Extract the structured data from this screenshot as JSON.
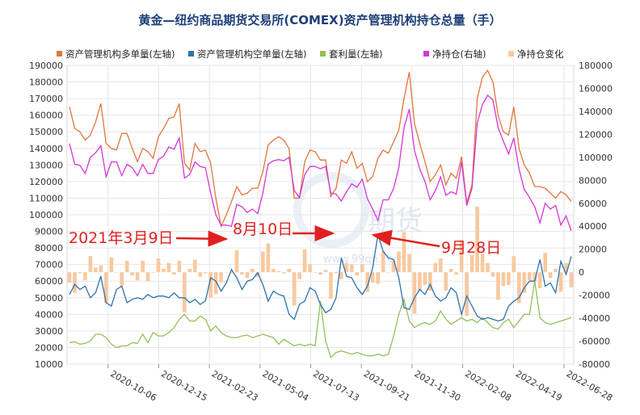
{
  "chart_data": {
    "type": "line",
    "title": "黄金—纽约商品期货交易所(COMEX)资产管理机构持仓总量（手）",
    "left_axis": {
      "min": 10000,
      "max": 190000,
      "step": 10000,
      "tick_labels": [
        "10000",
        "20000",
        "30000",
        "40000",
        "50000",
        "60000",
        "70000",
        "80000",
        "90000",
        "100000",
        "110000",
        "120000",
        "130000",
        "140000",
        "150000",
        "160000",
        "170000",
        "180000",
        "190000"
      ]
    },
    "right_axis": {
      "min": -80000,
      "max": 180000,
      "step": 20000,
      "tick_labels": [
        "-80000",
        "-60000",
        "-40000",
        "-20000",
        "0",
        "20000",
        "40000",
        "60000",
        "80000",
        "100000",
        "120000",
        "140000",
        "160000",
        "180000"
      ]
    },
    "x_tick_labels": [
      "2020-10-06",
      "2020-12-15",
      "2021-02-23",
      "2021-05-04",
      "2021-07-13",
      "2021-09-21",
      "2021-11-30",
      "2022-02-08",
      "2022-04-19",
      "2022-06-28"
    ],
    "legend": [
      {
        "label": "资产管理机构多单量(左轴)",
        "color": "#e0763c"
      },
      {
        "label": "资产管理机构空单量(左轴)",
        "color": "#2f72ad"
      },
      {
        "label": "套利量(左轴)",
        "color": "#93c058"
      },
      {
        "label": "净持仓(右轴)",
        "color": "#d636d6"
      },
      {
        "label": "净持仓变化",
        "color": "#f8c9a0"
      }
    ],
    "series": [
      {
        "name": "资产管理机构多单量(左轴)",
        "axis": "left",
        "color": "#e0763c",
        "values": [
          165000,
          152000,
          150000,
          145000,
          148000,
          156000,
          167000,
          143000,
          140000,
          139000,
          149000,
          149000,
          140000,
          132000,
          140000,
          138000,
          134000,
          147000,
          152000,
          158000,
          159000,
          167000,
          131000,
          127000,
          143000,
          138000,
          139000,
          131000,
          110000,
          93000,
          100000,
          108000,
          117000,
          112000,
          113000,
          116000,
          116000,
          126000,
          142000,
          145000,
          147000,
          145000,
          140000,
          110000,
          110000,
          132000,
          139000,
          138000,
          133000,
          133000,
          111000,
          116000,
          133000,
          131000,
          138000,
          128000,
          131000,
          120000,
          123000,
          134000,
          139000,
          137000,
          144000,
          151000,
          170000,
          186000,
          155000,
          143000,
          132000,
          120000,
          124000,
          130000,
          118000,
          125000,
          122000,
          135000,
          107000,
          118000,
          170000,
          183000,
          187000,
          180000,
          160000,
          150000,
          148000,
          165000,
          140000,
          130000,
          125000,
          117000,
          117000,
          116000,
          113000,
          110000,
          114000,
          112000,
          108000
        ]
      },
      {
        "name": "资产管理机构空单量(左轴)",
        "axis": "left",
        "color": "#2f72ad",
        "values": [
          52000,
          58000,
          55000,
          57000,
          50000,
          53000,
          63000,
          47000,
          45000,
          55000,
          57000,
          47000,
          49000,
          50000,
          49000,
          52000,
          50000,
          51000,
          51000,
          50000,
          53000,
          50000,
          50000,
          47000,
          49000,
          46000,
          48000,
          62000,
          60000,
          54000,
          59000,
          67000,
          62000,
          55000,
          60000,
          61000,
          65000,
          58000,
          48000,
          54000,
          52000,
          51000,
          40000,
          37000,
          46000,
          48000,
          56000,
          54000,
          46000,
          41000,
          43000,
          50000,
          74000,
          63000,
          62000,
          56000,
          52000,
          57000,
          68000,
          88000,
          78000,
          74000,
          73000,
          62000,
          44000,
          43000,
          50000,
          55000,
          52000,
          58000,
          51000,
          48000,
          50000,
          56000,
          53000,
          40000,
          51000,
          45000,
          39000,
          37000,
          38000,
          37000,
          36000,
          37000,
          45000,
          48000,
          50000,
          56000,
          60000,
          60000,
          73000,
          57000,
          59000,
          53000,
          72000,
          64000,
          75000
        ]
      },
      {
        "name": "套利量(左轴)",
        "axis": "left",
        "color": "#93c058",
        "values": [
          23000,
          23500,
          22000,
          22500,
          24000,
          28000,
          28000,
          26000,
          22000,
          20000,
          21000,
          21000,
          23000,
          22500,
          28000,
          23000,
          29000,
          27000,
          27000,
          29000,
          32000,
          37000,
          40000,
          36000,
          36000,
          39000,
          37000,
          30000,
          33000,
          29000,
          27000,
          26000,
          26000,
          27000,
          27500,
          26000,
          27000,
          28000,
          27000,
          26000,
          22000,
          25000,
          23000,
          21000,
          22000,
          21000,
          22000,
          21000,
          48000,
          24000,
          14000,
          17000,
          18000,
          17000,
          16000,
          17000,
          16000,
          15000,
          15000,
          16000,
          15000,
          16000,
          27000,
          40000,
          49000,
          36000,
          32000,
          34000,
          35000,
          34000,
          36000,
          42000,
          37000,
          34000,
          36000,
          38000,
          36000,
          37000,
          35000,
          38000,
          35000,
          32000,
          31000,
          35000,
          37000,
          32000,
          36000,
          40000,
          40000,
          60000,
          38000,
          35000,
          34000,
          35000,
          36000,
          37000,
          38000
        ]
      },
      {
        "name": "净持仓(右轴)",
        "axis": "right",
        "color": "#d636d6",
        "values": [
          112000,
          94000,
          93000,
          86000,
          100000,
          104000,
          110000,
          83000,
          96000,
          96000,
          84000,
          94000,
          91000,
          84000,
          94000,
          86000,
          86000,
          98000,
          101000,
          109000,
          107000,
          117000,
          82000,
          85000,
          96000,
          92000,
          91000,
          69000,
          50000,
          41000,
          41000,
          40000,
          59000,
          57000,
          52000,
          55000,
          51000,
          69000,
          94000,
          97000,
          98000,
          97000,
          100000,
          71000,
          65000,
          85000,
          92000,
          92000,
          90000,
          92000,
          69000,
          68000,
          62000,
          70000,
          77000,
          74000,
          81000,
          64000,
          55000,
          45000,
          63000,
          63000,
          73000,
          91000,
          126000,
          142000,
          106000,
          90000,
          79000,
          63000,
          71000,
          83000,
          67000,
          70000,
          68000,
          96000,
          58000,
          73000,
          130000,
          146000,
          154000,
          150000,
          126000,
          114000,
          103000,
          117000,
          90000,
          72000,
          65000,
          57000,
          43000,
          60000,
          55000,
          58000,
          41000,
          49000,
          36000
        ]
      },
      {
        "name": "净持仓变化",
        "axis": "right",
        "type": "bar",
        "color": "#f8c9a0",
        "values": [
          -9000,
          -18000,
          -1000,
          -7000,
          14000,
          4000,
          6000,
          -27000,
          13000,
          0,
          -12000,
          10000,
          -3000,
          -7000,
          10000,
          -8000,
          0,
          12000,
          3000,
          8000,
          -2000,
          10000,
          -35000,
          3000,
          11000,
          -4000,
          -1000,
          -22000,
          -19000,
          -9000,
          0,
          -1000,
          19000,
          -2000,
          -5000,
          3000,
          -4000,
          18000,
          25000,
          3000,
          1000,
          -1000,
          3000,
          -29000,
          -6000,
          20000,
          7000,
          0,
          -2000,
          2000,
          -23000,
          -1000,
          -6000,
          8000,
          7000,
          -3000,
          7000,
          -17000,
          -9000,
          -10000,
          18000,
          0,
          10000,
          18000,
          35000,
          16000,
          -36000,
          -16000,
          -11000,
          -16000,
          8000,
          12000,
          -16000,
          3000,
          -2000,
          28000,
          -38000,
          15000,
          57000,
          16000,
          8000,
          -4000,
          -24000,
          -12000,
          -11000,
          14000,
          -27000,
          -18000,
          -7000,
          -8000,
          -14000,
          17000,
          -5000,
          3000,
          -17000,
          8000,
          -13000
        ]
      }
    ],
    "annotations": [
      {
        "text": "2021年3月9日",
        "color": "#e02020"
      },
      {
        "text": "8月10日",
        "color": "#e02020"
      },
      {
        "text": "9月28日",
        "color": "#e02020"
      }
    ],
    "watermark": {
      "main": "期货",
      "sub": "www.99qh.com"
    }
  }
}
